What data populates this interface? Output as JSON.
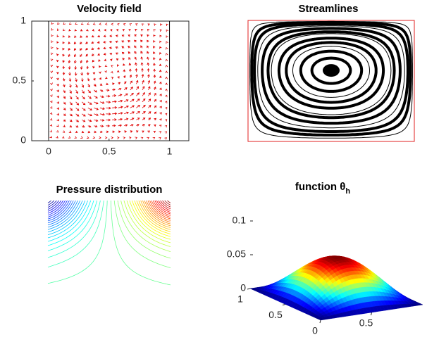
{
  "chart_data": [
    {
      "type": "quiver",
      "title": "Velocity field",
      "color": "#e00000",
      "xlim": [
        -0.14,
        1.16
      ],
      "ylim": [
        0,
        1
      ],
      "xticks": [
        0,
        0.5,
        1
      ],
      "yticks": [
        0,
        0.5,
        1
      ]
    },
    {
      "type": "streamlines",
      "title": "Streamlines",
      "color": "#000000",
      "frame_color": "#e02020"
    },
    {
      "type": "contour",
      "title": "Pressure distribution",
      "colormap": "jet"
    },
    {
      "type": "surface",
      "title": "function θ",
      "title_subscript": "h",
      "colormap": "jet",
      "xlim": [
        0,
        1
      ],
      "ylim": [
        0,
        1
      ],
      "zlim": [
        0,
        0.1
      ],
      "xticks": [
        0,
        0.5
      ],
      "yticks": [
        0.5,
        1
      ],
      "zticks": [
        0,
        0.05,
        0.1
      ]
    }
  ]
}
